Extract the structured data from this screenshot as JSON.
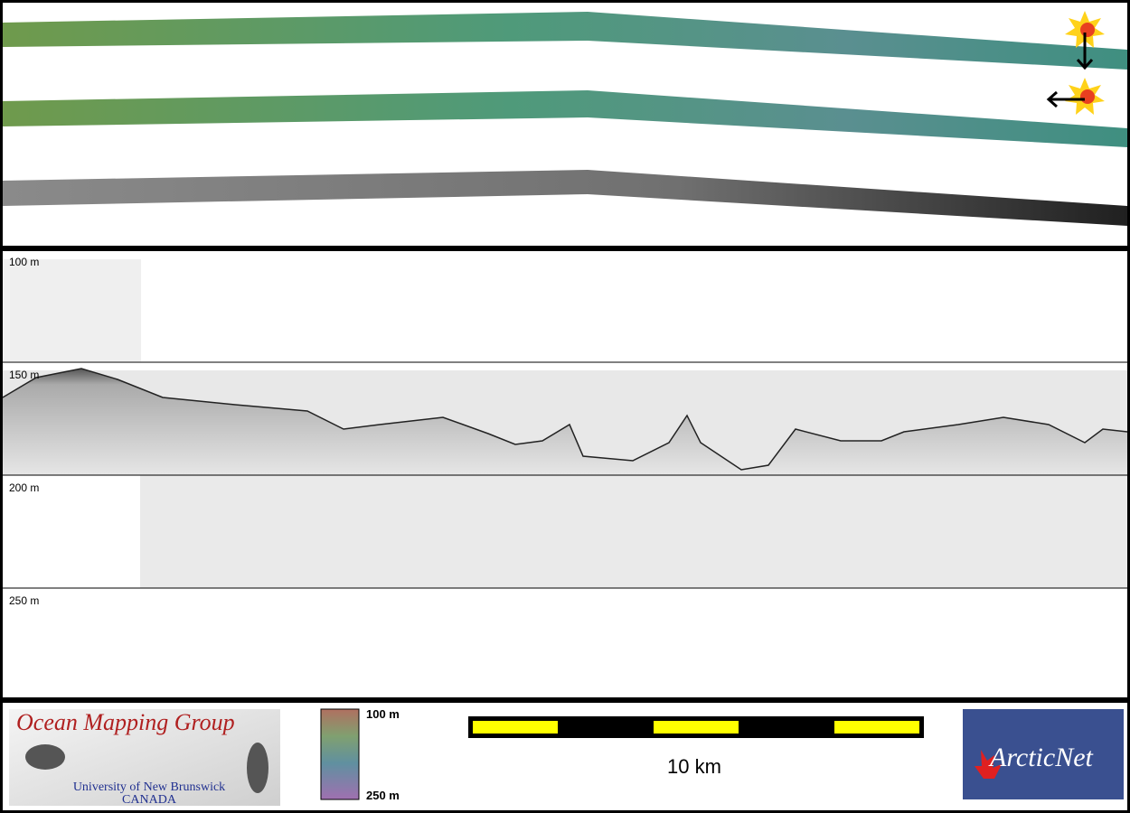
{
  "profile": {
    "depth_labels": [
      "100 m",
      "150 m",
      "200 m",
      "250 m"
    ]
  },
  "footer": {
    "logo": {
      "title": "Ocean Mapping Group",
      "line1": "University of New Brunswick",
      "line2": "CANADA"
    },
    "colorbar": {
      "top_label": "100 m",
      "bottom_label": "250 m"
    },
    "scale_bar": {
      "label": "10 km"
    },
    "partner_logo": "ArcticNet"
  }
}
